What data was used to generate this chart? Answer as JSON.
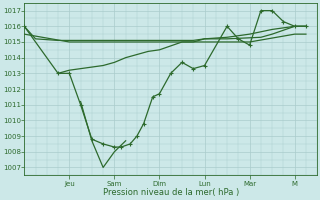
{
  "xlabel": "Pression niveau de la mer( hPa )",
  "bg_color": "#cce8e8",
  "grid_color": "#aacccc",
  "line_color": "#2d6a2d",
  "ylim": [
    1006.5,
    1017.5
  ],
  "yticks": [
    1007,
    1008,
    1009,
    1010,
    1011,
    1012,
    1013,
    1014,
    1015,
    1016,
    1017
  ],
  "day_labels": [
    "Jeu",
    "Sam",
    "Dim",
    "Lun",
    "Mar",
    "M"
  ],
  "day_positions": [
    2.0,
    4.0,
    6.0,
    8.0,
    10.0,
    12.0
  ],
  "xlim": [
    0,
    13.0
  ],
  "series_flat1": {
    "x": [
      0,
      0.5,
      1.5,
      2.0,
      4.0,
      6.0,
      7.5,
      8.0,
      9.0,
      10.5,
      11.0,
      12.0,
      12.5
    ],
    "y": [
      1016.0,
      1015.2,
      1015.1,
      1015.1,
      1015.1,
      1015.1,
      1015.1,
      1015.2,
      1015.2,
      1015.3,
      1015.5,
      1016.0,
      1016.0
    ]
  },
  "series_flat2": {
    "x": [
      0,
      2.0,
      4.0,
      6.0,
      8.0,
      10.0,
      12.0,
      12.5
    ],
    "y": [
      1015.5,
      1015.0,
      1015.0,
      1015.0,
      1015.0,
      1015.0,
      1015.5,
      1015.5
    ]
  },
  "series_mid": {
    "x": [
      1.5,
      2.0,
      3.5,
      4.0,
      4.5,
      5.0,
      5.5,
      6.0,
      7.0,
      7.5,
      8.0,
      9.0,
      10.0,
      11.0,
      12.0,
      12.5
    ],
    "y": [
      1013.0,
      1013.2,
      1013.5,
      1013.7,
      1014.0,
      1014.2,
      1014.4,
      1014.5,
      1015.0,
      1015.0,
      1015.2,
      1015.3,
      1015.5,
      1015.8,
      1016.0,
      1016.0
    ]
  },
  "series_main": {
    "x": [
      0,
      1.5,
      2.0,
      2.5,
      3.0,
      3.5,
      4.0,
      4.3,
      4.7,
      5.0,
      5.3,
      5.7,
      6.0,
      6.5,
      7.0,
      7.5,
      8.0,
      9.0,
      9.5,
      10.0,
      10.5,
      11.0,
      11.5,
      12.0,
      12.5
    ],
    "y": [
      1016.0,
      1013.0,
      1013.0,
      1011.0,
      1008.8,
      1008.5,
      1008.3,
      1008.3,
      1008.5,
      1009.0,
      1009.8,
      1011.5,
      1011.7,
      1013.0,
      1013.7,
      1013.3,
      1013.5,
      1016.0,
      1015.2,
      1014.8,
      1017.0,
      1017.0,
      1016.3,
      1016.0,
      1016.0
    ]
  },
  "series_down": {
    "x": [
      2.5,
      3.0,
      3.5,
      4.0,
      4.5
    ],
    "y": [
      1011.2,
      1008.7,
      1007.0,
      1008.0,
      1008.7
    ]
  }
}
